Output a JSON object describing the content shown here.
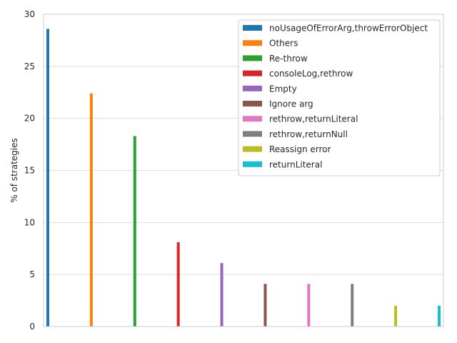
{
  "chart_data": {
    "type": "bar",
    "title": "",
    "xlabel": "",
    "ylabel": "% of strategies",
    "ylim": [
      0,
      30
    ],
    "yticks": [
      0,
      5,
      10,
      15,
      20,
      25,
      30
    ],
    "grid": true,
    "legend_position": "top-right",
    "series": [
      {
        "name": "noUsageOfErrorArg,throwErrorObject",
        "value": 28.6,
        "color": "#1f77b4"
      },
      {
        "name": "Others",
        "value": 22.4,
        "color": "#ff7f0e"
      },
      {
        "name": "Re-throw",
        "value": 18.3,
        "color": "#2ca02c"
      },
      {
        "name": "consoleLog,rethrow",
        "value": 8.1,
        "color": "#d62728"
      },
      {
        "name": "Empty",
        "value": 6.1,
        "color": "#9467bd"
      },
      {
        "name": "Ignore arg",
        "value": 4.1,
        "color": "#8c564b"
      },
      {
        "name": "rethrow,returnLiteral",
        "value": 4.1,
        "color": "#e377c2"
      },
      {
        "name": "rethrow,returnNull",
        "value": 4.1,
        "color": "#7f7f7f"
      },
      {
        "name": "Reassign error",
        "value": 2.0,
        "color": "#bcbd22"
      },
      {
        "name": "returnLiteral",
        "value": 2.0,
        "color": "#17becf"
      }
    ]
  }
}
